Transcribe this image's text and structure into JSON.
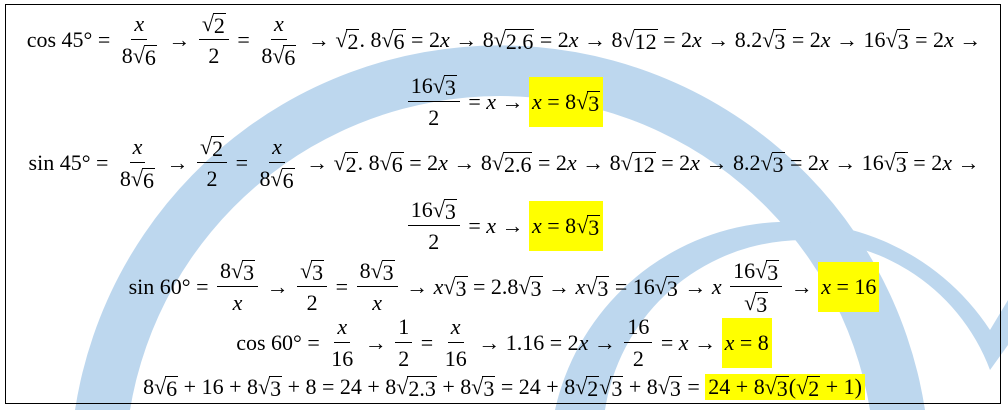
{
  "watermark_color": "#bdd7ee",
  "highlight_color": "#ffff00",
  "lines": [
    {
      "tokens": [
        "cos 45° = ",
        {
          "frac": [
            [
              "x"
            ],
            [
              "8",
              {
                "sqrt": "6"
              }
            ]
          ]
        },
        " → ",
        {
          "frac": [
            [
              {
                "sqrt": "2"
              }
            ],
            [
              "2"
            ]
          ]
        },
        " = ",
        {
          "frac": [
            [
              "x"
            ],
            [
              "8",
              {
                "sqrt": "6"
              }
            ]
          ]
        },
        " → ",
        {
          "sqrt": "2"
        },
        ". 8",
        {
          "sqrt": "6"
        },
        " = 2x → 8",
        {
          "sqrt": "2.6"
        },
        " = 2x → 8",
        {
          "sqrt": "12"
        },
        " = 2x → 8.2",
        {
          "sqrt": "3"
        },
        " = 2x → 16",
        {
          "sqrt": "3"
        },
        " = 2x →"
      ]
    },
    {
      "tokens": [
        {
          "frac": [
            [
              "16",
              {
                "sqrt": "3"
              }
            ],
            [
              "2"
            ]
          ]
        },
        " = x → ",
        {
          "hl": [
            "x = 8",
            {
              "sqrt": "3"
            }
          ]
        }
      ]
    },
    {
      "tokens": [
        "sin 45° = ",
        {
          "frac": [
            [
              "x"
            ],
            [
              "8",
              {
                "sqrt": "6"
              }
            ]
          ]
        },
        " → ",
        {
          "frac": [
            [
              {
                "sqrt": "2"
              }
            ],
            [
              "2"
            ]
          ]
        },
        " = ",
        {
          "frac": [
            [
              "x"
            ],
            [
              "8",
              {
                "sqrt": "6"
              }
            ]
          ]
        },
        " → ",
        {
          "sqrt": "2"
        },
        ". 8",
        {
          "sqrt": "6"
        },
        " = 2x → 8",
        {
          "sqrt": "2.6"
        },
        " = 2x → 8",
        {
          "sqrt": "12"
        },
        " = 2x → 8.2",
        {
          "sqrt": "3"
        },
        " = 2x → 16",
        {
          "sqrt": "3"
        },
        " = 2x →"
      ]
    },
    {
      "tokens": [
        {
          "frac": [
            [
              "16",
              {
                "sqrt": "3"
              }
            ],
            [
              "2"
            ]
          ]
        },
        " = x → ",
        {
          "hl": [
            "x = 8",
            {
              "sqrt": "3"
            }
          ]
        }
      ]
    },
    {
      "tokens": [
        "sin 60° = ",
        {
          "frac": [
            [
              "8",
              {
                "sqrt": "3"
              }
            ],
            [
              "x"
            ]
          ]
        },
        " → ",
        {
          "frac": [
            [
              {
                "sqrt": "3"
              }
            ],
            [
              "2"
            ]
          ]
        },
        " = ",
        {
          "frac": [
            [
              "8",
              {
                "sqrt": "3"
              }
            ],
            [
              "x"
            ]
          ]
        },
        " → x",
        {
          "sqrt": "3"
        },
        " = 2.8",
        {
          "sqrt": "3"
        },
        " → x",
        {
          "sqrt": "3"
        },
        " = 16",
        {
          "sqrt": "3"
        },
        " → x ",
        {
          "frac": [
            [
              "16",
              {
                "sqrt": "3"
              }
            ],
            [
              {
                "sqrt": "3"
              }
            ]
          ]
        },
        " → ",
        {
          "hl": [
            "x = 16"
          ]
        }
      ]
    },
    {
      "tokens": [
        "cos 60° = ",
        {
          "frac": [
            [
              "x"
            ],
            [
              "16"
            ]
          ]
        },
        " → ",
        {
          "frac": [
            [
              "1"
            ],
            [
              "2"
            ]
          ]
        },
        " = ",
        {
          "frac": [
            [
              "x"
            ],
            [
              "16"
            ]
          ]
        },
        " → 1.16 = 2x → ",
        {
          "frac": [
            [
              "16"
            ],
            [
              "2"
            ]
          ]
        },
        " = x → ",
        {
          "hl": [
            "x = 8"
          ]
        }
      ]
    },
    {
      "tokens": [
        "8",
        {
          "sqrt": "6"
        },
        " + 16 + 8",
        {
          "sqrt": "3"
        },
        " + 8 = 24 + 8",
        {
          "sqrt": "2.3"
        },
        " + 8",
        {
          "sqrt": "3"
        },
        " = 24 + 8",
        {
          "sqrt": "2"
        },
        {
          "sqrt": "3"
        },
        " + 8",
        {
          "sqrt": "3"
        },
        " = ",
        {
          "hl": [
            "24 + 8",
            {
              "sqrt": "3"
            },
            "(",
            {
              "sqrt": "2"
            },
            " + 1)"
          ]
        }
      ]
    }
  ]
}
